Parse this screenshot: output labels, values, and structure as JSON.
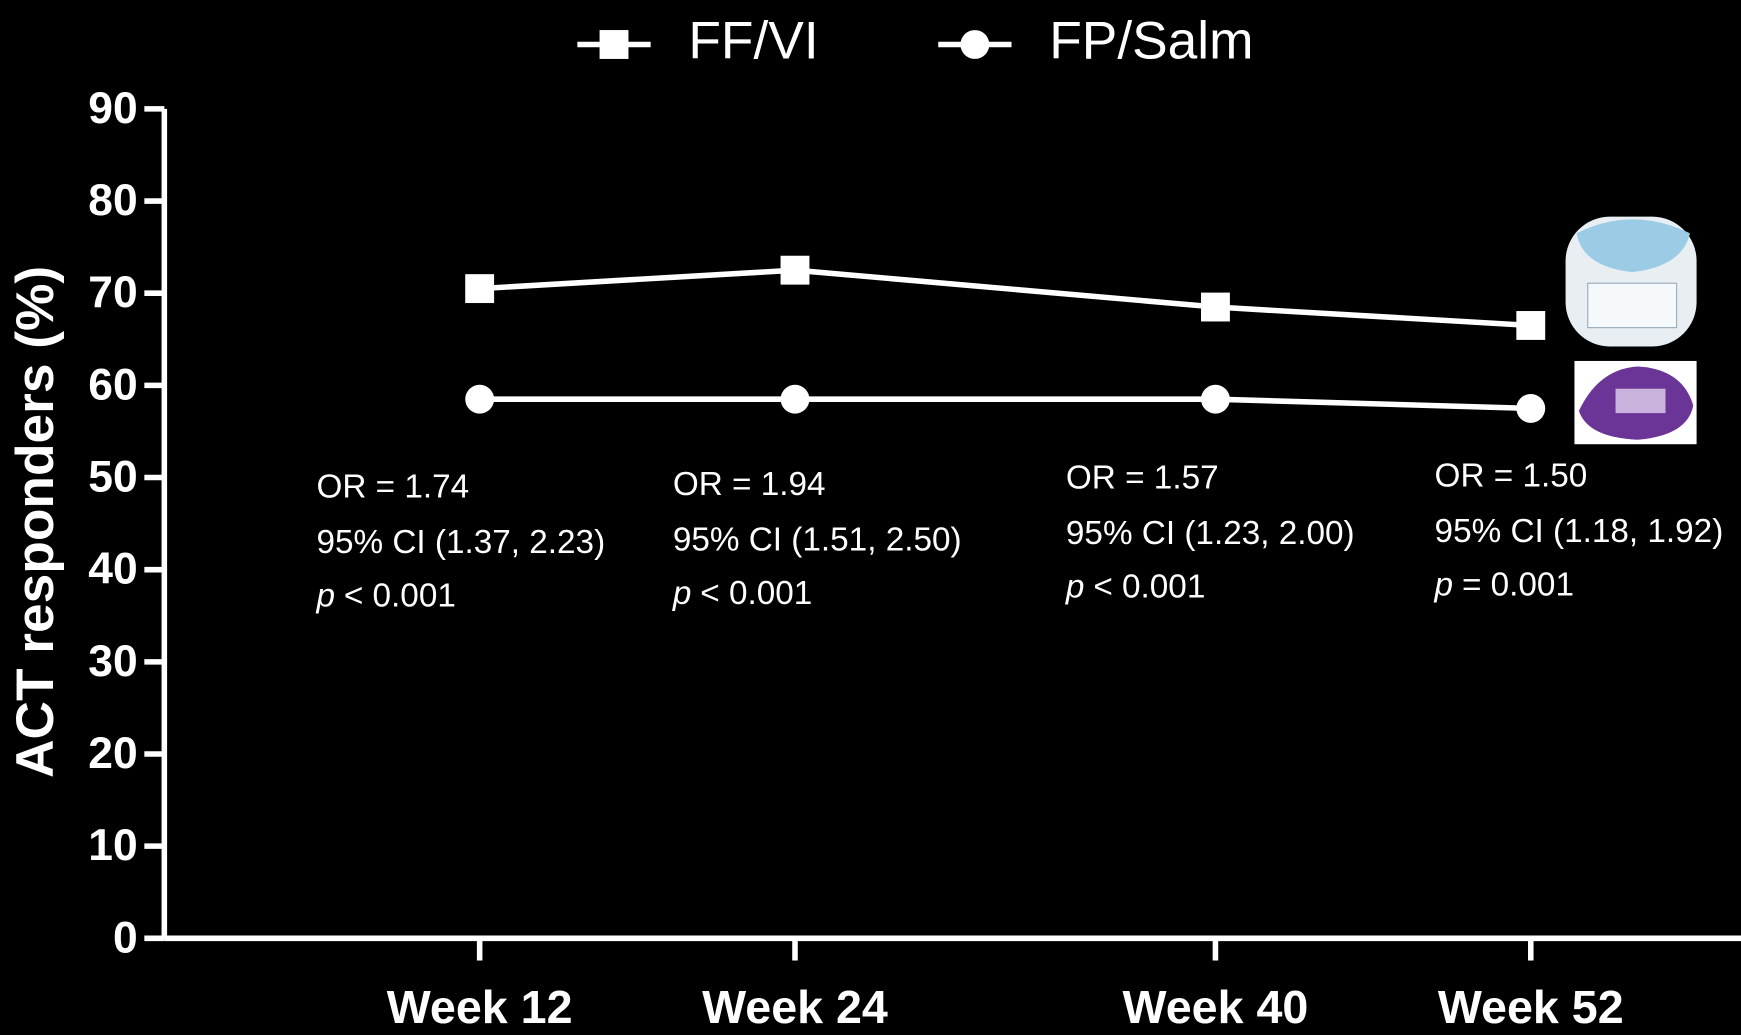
{
  "chart_data": {
    "type": "line",
    "y_label": "ACT responders (%)",
    "x": [
      12,
      24,
      40,
      52
    ],
    "xlim": [
      0,
      60
    ],
    "xticks": [
      {
        "value": 12,
        "label": "Week 12"
      },
      {
        "value": 24,
        "label": "Week 24"
      },
      {
        "value": 40,
        "label": "Week 40"
      },
      {
        "value": 52,
        "label": "Week 52"
      }
    ],
    "ylim": [
      0,
      90
    ],
    "yticks": [
      0,
      10,
      20,
      30,
      40,
      50,
      60,
      70,
      80,
      90
    ],
    "grid": false,
    "legend": "top",
    "series": [
      {
        "name": "FF/VI",
        "color": "#ffffff",
        "marker": "square",
        "values": [
          70.5,
          72.5,
          68.5,
          66.5
        ]
      },
      {
        "name": "FP/Salm",
        "color": "#ffffff",
        "marker": "circle",
        "values": [
          58.5,
          58.5,
          58.5,
          57.5
        ]
      }
    ],
    "annotations": [
      {
        "or": "OR = 1.74",
        "ci": "95% CI (1.37, 2.23)",
        "p_symbol": "p",
        "p_text": "< 0.001"
      },
      {
        "or": "OR = 1.94",
        "ci": "95% CI (1.51, 2.50)",
        "p_symbol": "p",
        "p_text": "< 0.001"
      },
      {
        "or": "OR = 1.57",
        "ci": "95% CI (1.23, 2.00)",
        "p_symbol": "p",
        "p_text": "< 0.001"
      },
      {
        "or": "OR = 1.50",
        "ci": "95% CI (1.18, 1.92)",
        "p_symbol": "p",
        "p_text": "= 0.001"
      }
    ]
  }
}
